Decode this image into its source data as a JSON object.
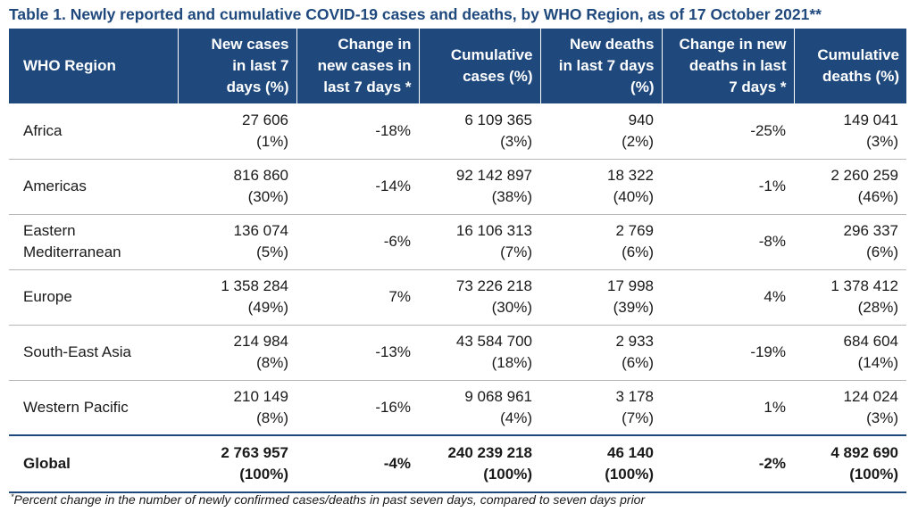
{
  "caption": "Table 1. Newly reported and cumulative COVID-19 cases and deaths, by WHO Region, as of 17 October 2021**",
  "headers": [
    "WHO Region",
    "New cases in last 7 days (%)",
    "Change in new cases in last 7 days *",
    "Cumulative cases (%)",
    "New deaths in last 7 days (%)",
    "Change in new deaths in last 7 days *",
    "Cumulative deaths (%)"
  ],
  "header_lines": [
    [
      "WHO Region"
    ],
    [
      "New cases",
      "in last 7",
      "days (%)"
    ],
    [
      "Change in",
      "new cases in",
      "last 7 days *"
    ],
    [
      "Cumulative",
      "cases (%)"
    ],
    [
      "New deaths",
      "in last 7 days",
      "(%)"
    ],
    [
      "Change in new",
      "deaths in last",
      "7 days *"
    ],
    [
      "Cumulative",
      "deaths (%)"
    ]
  ],
  "rows": [
    {
      "region": [
        "Africa"
      ],
      "new_cases": "27 606",
      "new_cases_pct": "(1%)",
      "change_cases": "-18%",
      "cum_cases": "6 109 365",
      "cum_cases_pct": "(3%)",
      "new_deaths": "940",
      "new_deaths_pct": "(2%)",
      "change_deaths": "-25%",
      "cum_deaths": "149 041",
      "cum_deaths_pct": "(3%)"
    },
    {
      "region": [
        "Americas"
      ],
      "new_cases": "816 860",
      "new_cases_pct": "(30%)",
      "change_cases": "-14%",
      "cum_cases": "92 142 897",
      "cum_cases_pct": "(38%)",
      "new_deaths": "18 322",
      "new_deaths_pct": "(40%)",
      "change_deaths": "-1%",
      "cum_deaths": "2 260 259",
      "cum_deaths_pct": "(46%)"
    },
    {
      "region": [
        "Eastern",
        "Mediterranean"
      ],
      "new_cases": "136 074",
      "new_cases_pct": "(5%)",
      "change_cases": "-6%",
      "cum_cases": "16 106 313",
      "cum_cases_pct": "(7%)",
      "new_deaths": "2 769",
      "new_deaths_pct": "(6%)",
      "change_deaths": "-8%",
      "cum_deaths": "296 337",
      "cum_deaths_pct": "(6%)"
    },
    {
      "region": [
        "Europe"
      ],
      "new_cases": "1 358 284",
      "new_cases_pct": "(49%)",
      "change_cases": "7%",
      "cum_cases": "73 226 218",
      "cum_cases_pct": "(30%)",
      "new_deaths": "17 998",
      "new_deaths_pct": "(39%)",
      "change_deaths": "4%",
      "cum_deaths": "1 378 412",
      "cum_deaths_pct": "(28%)"
    },
    {
      "region": [
        "South-East Asia"
      ],
      "new_cases": "214 984",
      "new_cases_pct": "(8%)",
      "change_cases": "-13%",
      "cum_cases": "43 584 700",
      "cum_cases_pct": "(18%)",
      "new_deaths": "2 933",
      "new_deaths_pct": "(6%)",
      "change_deaths": "-19%",
      "cum_deaths": "684 604",
      "cum_deaths_pct": "(14%)"
    },
    {
      "region": [
        "Western Pacific"
      ],
      "new_cases": "210 149",
      "new_cases_pct": "(8%)",
      "change_cases": "-16%",
      "cum_cases": "9 068 961",
      "cum_cases_pct": "(4%)",
      "new_deaths": "3 178",
      "new_deaths_pct": "(7%)",
      "change_deaths": "1%",
      "cum_deaths": "124 024",
      "cum_deaths_pct": "(3%)"
    }
  ],
  "global": {
    "region": [
      "Global"
    ],
    "new_cases": "2 763 957",
    "new_cases_pct": "(100%)",
    "change_cases": "-4%",
    "cum_cases": "240 239 218",
    "cum_cases_pct": "(100%)",
    "new_deaths": "46 140",
    "new_deaths_pct": "(100%)",
    "change_deaths": "-2%",
    "cum_deaths": "4 892 690",
    "cum_deaths_pct": "(100%)"
  },
  "footnote": {
    "marker": "*",
    "text": "Percent change in the number of newly confirmed cases/deaths in past seven days, compared to seven days prior"
  },
  "colors": {
    "header_bg": "#1f497d",
    "header_text": "#ffffff",
    "caption_text": "#1f497d",
    "row_divider": "#b7b7b7"
  }
}
